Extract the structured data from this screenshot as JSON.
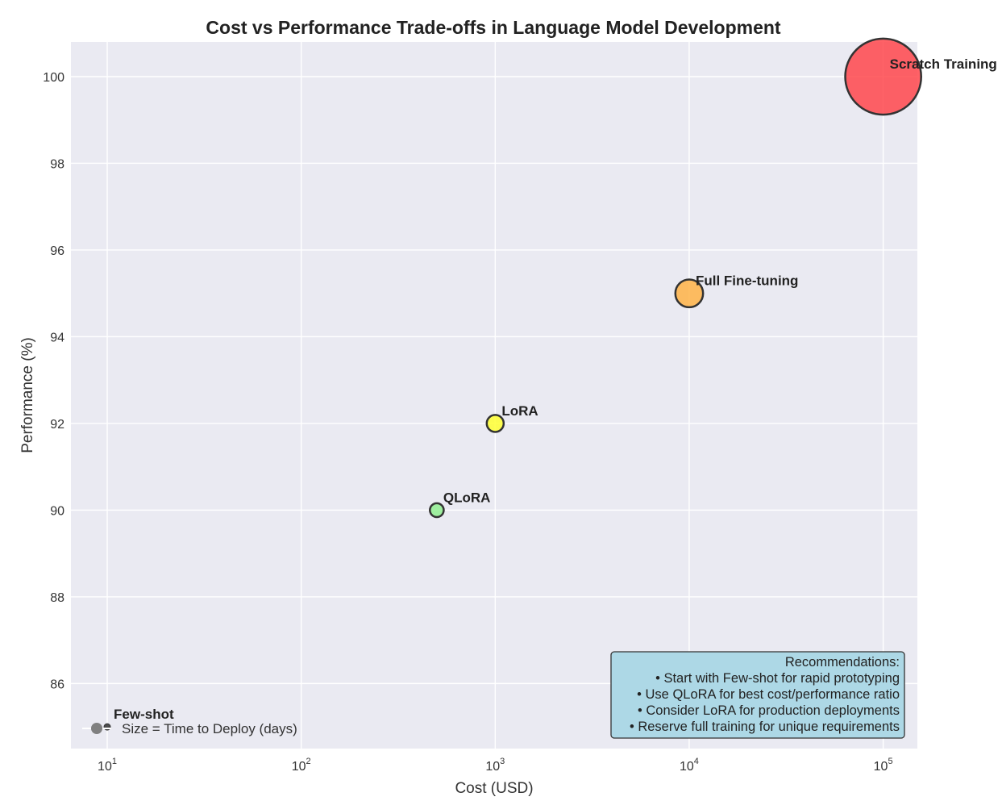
{
  "chart_data": {
    "type": "scatter",
    "title": "Cost vs Performance Trade-offs in Language Model Development",
    "xlabel": "Cost (USD)",
    "ylabel": "Performance (%)",
    "xscale": "log",
    "xlim": [
      6.5,
      150000
    ],
    "ylim": [
      84.5,
      100.8
    ],
    "xticks": [
      10,
      100,
      1000,
      10000,
      100000
    ],
    "xtick_labels": [
      {
        "base": "10",
        "exp": "1"
      },
      {
        "base": "10",
        "exp": "2"
      },
      {
        "base": "10",
        "exp": "3"
      },
      {
        "base": "10",
        "exp": "4"
      },
      {
        "base": "10",
        "exp": "5"
      }
    ],
    "yticks": [
      86,
      88,
      90,
      92,
      94,
      96,
      98,
      100
    ],
    "grid": true,
    "points": [
      {
        "label": "Few-shot",
        "x": 10,
        "y": 85,
        "time_days": 0.1,
        "color": "#2f2f2f"
      },
      {
        "label": "QLoRA",
        "x": 500,
        "y": 90,
        "time_days": 1,
        "color": "#90ee90"
      },
      {
        "label": "LoRA",
        "x": 1000,
        "y": 92,
        "time_days": 1.5,
        "color": "#ffff33"
      },
      {
        "label": "Full Fine-tuning",
        "x": 10000,
        "y": 95,
        "time_days": 4,
        "color": "#ffb347"
      },
      {
        "label": "Scratch Training",
        "x": 100000,
        "y": 100,
        "time_days": 30,
        "color": "#ff474c"
      }
    ],
    "legend": {
      "label": "Size = Time to Deploy (days)",
      "placement": "lower-left",
      "marker_color": "#808080"
    },
    "annotation_box": {
      "placement": "lower-right",
      "background": "#add8e6",
      "lines": [
        "Recommendations:",
        "• Start with Few-shot for rapid prototyping",
        "• Use QLoRA for best cost/performance ratio",
        "• Consider LoRA for production deployments",
        "• Reserve full training for unique requirements"
      ]
    }
  }
}
